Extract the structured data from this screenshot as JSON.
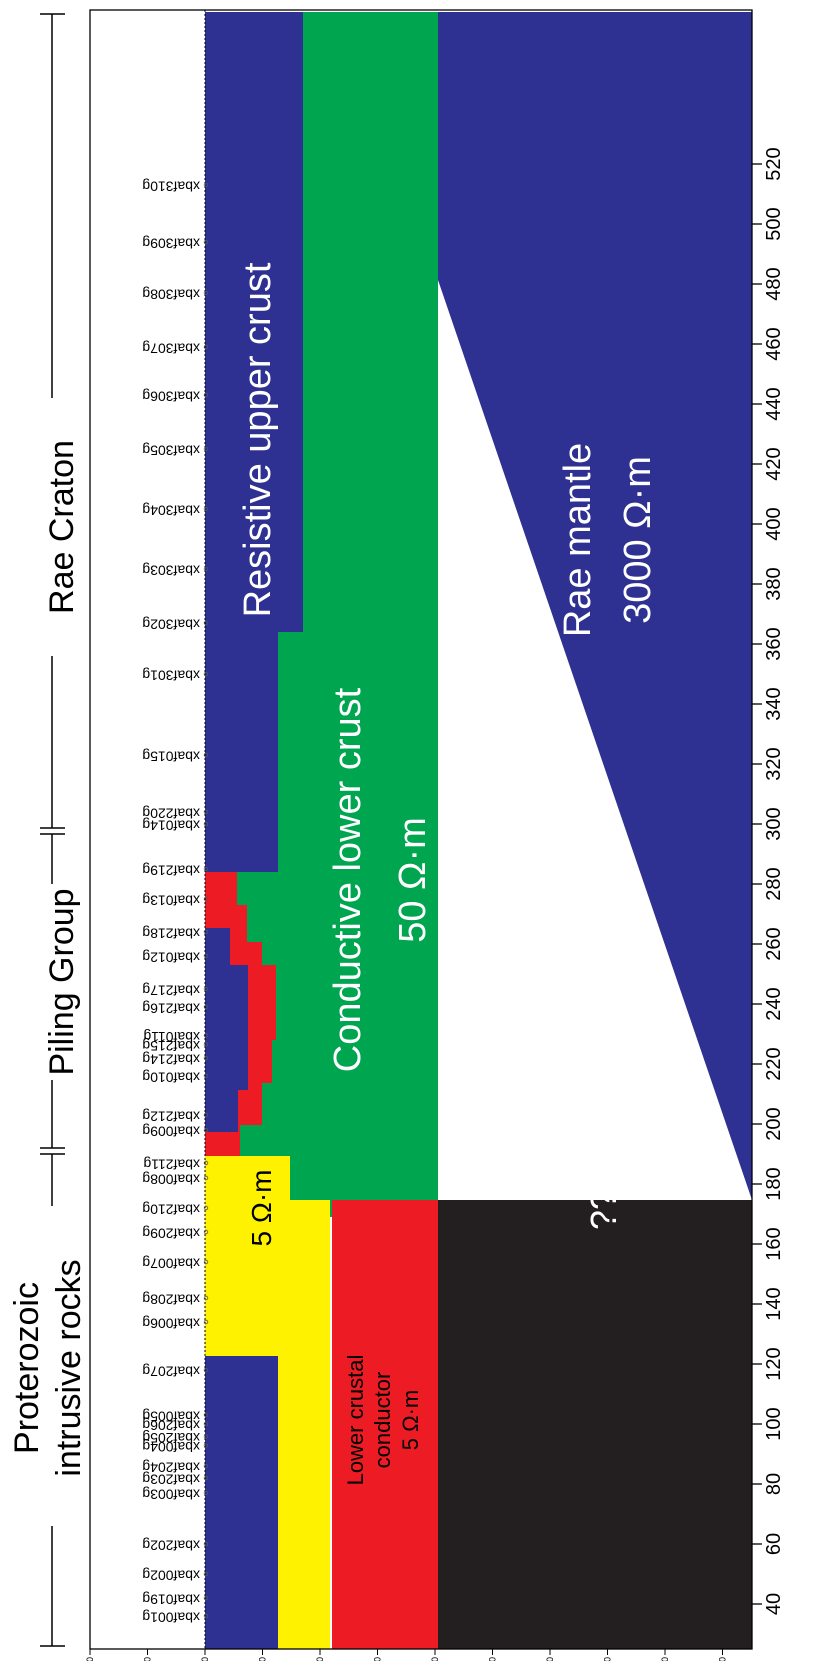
{
  "figure": {
    "x_ticks": [
      "40",
      "60",
      "80",
      "100",
      "120",
      "140",
      "160",
      "180",
      "200",
      "220",
      "240",
      "260",
      "280",
      "300",
      "320",
      "340",
      "360",
      "380",
      "400",
      "420",
      "440",
      "460",
      "480",
      "500",
      "520"
    ],
    "depth_ticks": [
      "20000",
      "10000",
      "0",
      "10000",
      "20000",
      "30000",
      "40000",
      "50000",
      "60000",
      "70000",
      "80000",
      "90000"
    ],
    "stations": [
      {
        "name": "xbaf001g",
        "km": 36
      },
      {
        "name": "xbaf019g",
        "km": 42
      },
      {
        "name": "xbaf002g",
        "km": 50
      },
      {
        "name": "xbaf202g",
        "km": 60
      },
      {
        "name": "xbaf003g",
        "km": 77
      },
      {
        "name": "xbaf203g",
        "km": 82
      },
      {
        "name": "xbaf204g",
        "km": 86
      },
      {
        "name": "xbaf004g",
        "km": 92.8
      },
      {
        "name": "xbaf205g",
        "km": 95.8
      },
      {
        "name": "xbaf206g",
        "km": 100
      },
      {
        "name": "xbaf005g",
        "km": 103
      },
      {
        "name": "xbaf207g",
        "km": 118
      },
      {
        "name": "xbaf006g",
        "km": 134
      },
      {
        "name": "xbaf208g",
        "km": 142
      },
      {
        "name": "xbaf007g",
        "km": 154
      },
      {
        "name": "xbaf209g",
        "km": 164
      },
      {
        "name": "xbaf210g",
        "km": 172
      },
      {
        "name": "xbaf008g",
        "km": 182
      },
      {
        "name": "xbaf211g",
        "km": 187
      },
      {
        "name": "xbaf009g",
        "km": 198
      },
      {
        "name": "xbaf212g",
        "km": 203
      },
      {
        "name": "xbaf010g",
        "km": 216
      },
      {
        "name": "xbaf214g",
        "km": 222
      },
      {
        "name": "xbaf215g",
        "km": 226.5
      },
      {
        "name": "xbaf011g",
        "km": 229.5
      },
      {
        "name": "xbaf216g",
        "km": 239
      },
      {
        "name": "xbaf217g",
        "km": 245
      },
      {
        "name": "xbaf012g",
        "km": 256
      },
      {
        "name": "xbaf218g",
        "km": 264
      },
      {
        "name": "xbaf013g",
        "km": 275
      },
      {
        "name": "xbaf219g",
        "km": 285
      },
      {
        "name": "xbaf014g",
        "km": 300
      },
      {
        "name": "xbaf220g",
        "km": 304
      },
      {
        "name": "xbaf015g",
        "km": 323
      },
      {
        "name": "xbaf301g",
        "km": 350
      },
      {
        "name": "xbaf302g",
        "km": 367
      },
      {
        "name": "xbaf303g",
        "km": 385
      },
      {
        "name": "xbaf304g",
        "km": 405
      },
      {
        "name": "xbaf305g",
        "km": 425
      },
      {
        "name": "xbaf306g",
        "km": 443
      },
      {
        "name": "xbaf307g",
        "km": 459
      },
      {
        "name": "xbaf308g",
        "km": 477
      },
      {
        "name": "xbaf309g",
        "km": 494
      },
      {
        "name": "xbaf310g",
        "km": 513
      }
    ],
    "top_labels": {
      "proterozoic": "Proterozoic",
      "intrusive": "intrusive rocks",
      "piling": "Piling Group",
      "rae_craton": "Rae Craton"
    },
    "regions": {
      "resistive_upper_crust": "Resistive upper crust",
      "conductive_lower_crust": "Conductive lower crust",
      "conductive_lower_crust_value": "50 Ω·m",
      "rae_mantle": "Rae mantle",
      "rae_mantle_value": "3000 Ω·m",
      "unknown": "??",
      "yellow_value": "5 Ω·m",
      "lcc_line1": "Lower crustal",
      "lcc_line2": "conductor",
      "lcc_value": "5 Ω·m"
    },
    "colors": {
      "blue": "#2e3191",
      "green": "#00a550",
      "red": "#ed1c24",
      "yellow": "#fff200",
      "black": "#231f20",
      "white": "#ffffff"
    }
  }
}
